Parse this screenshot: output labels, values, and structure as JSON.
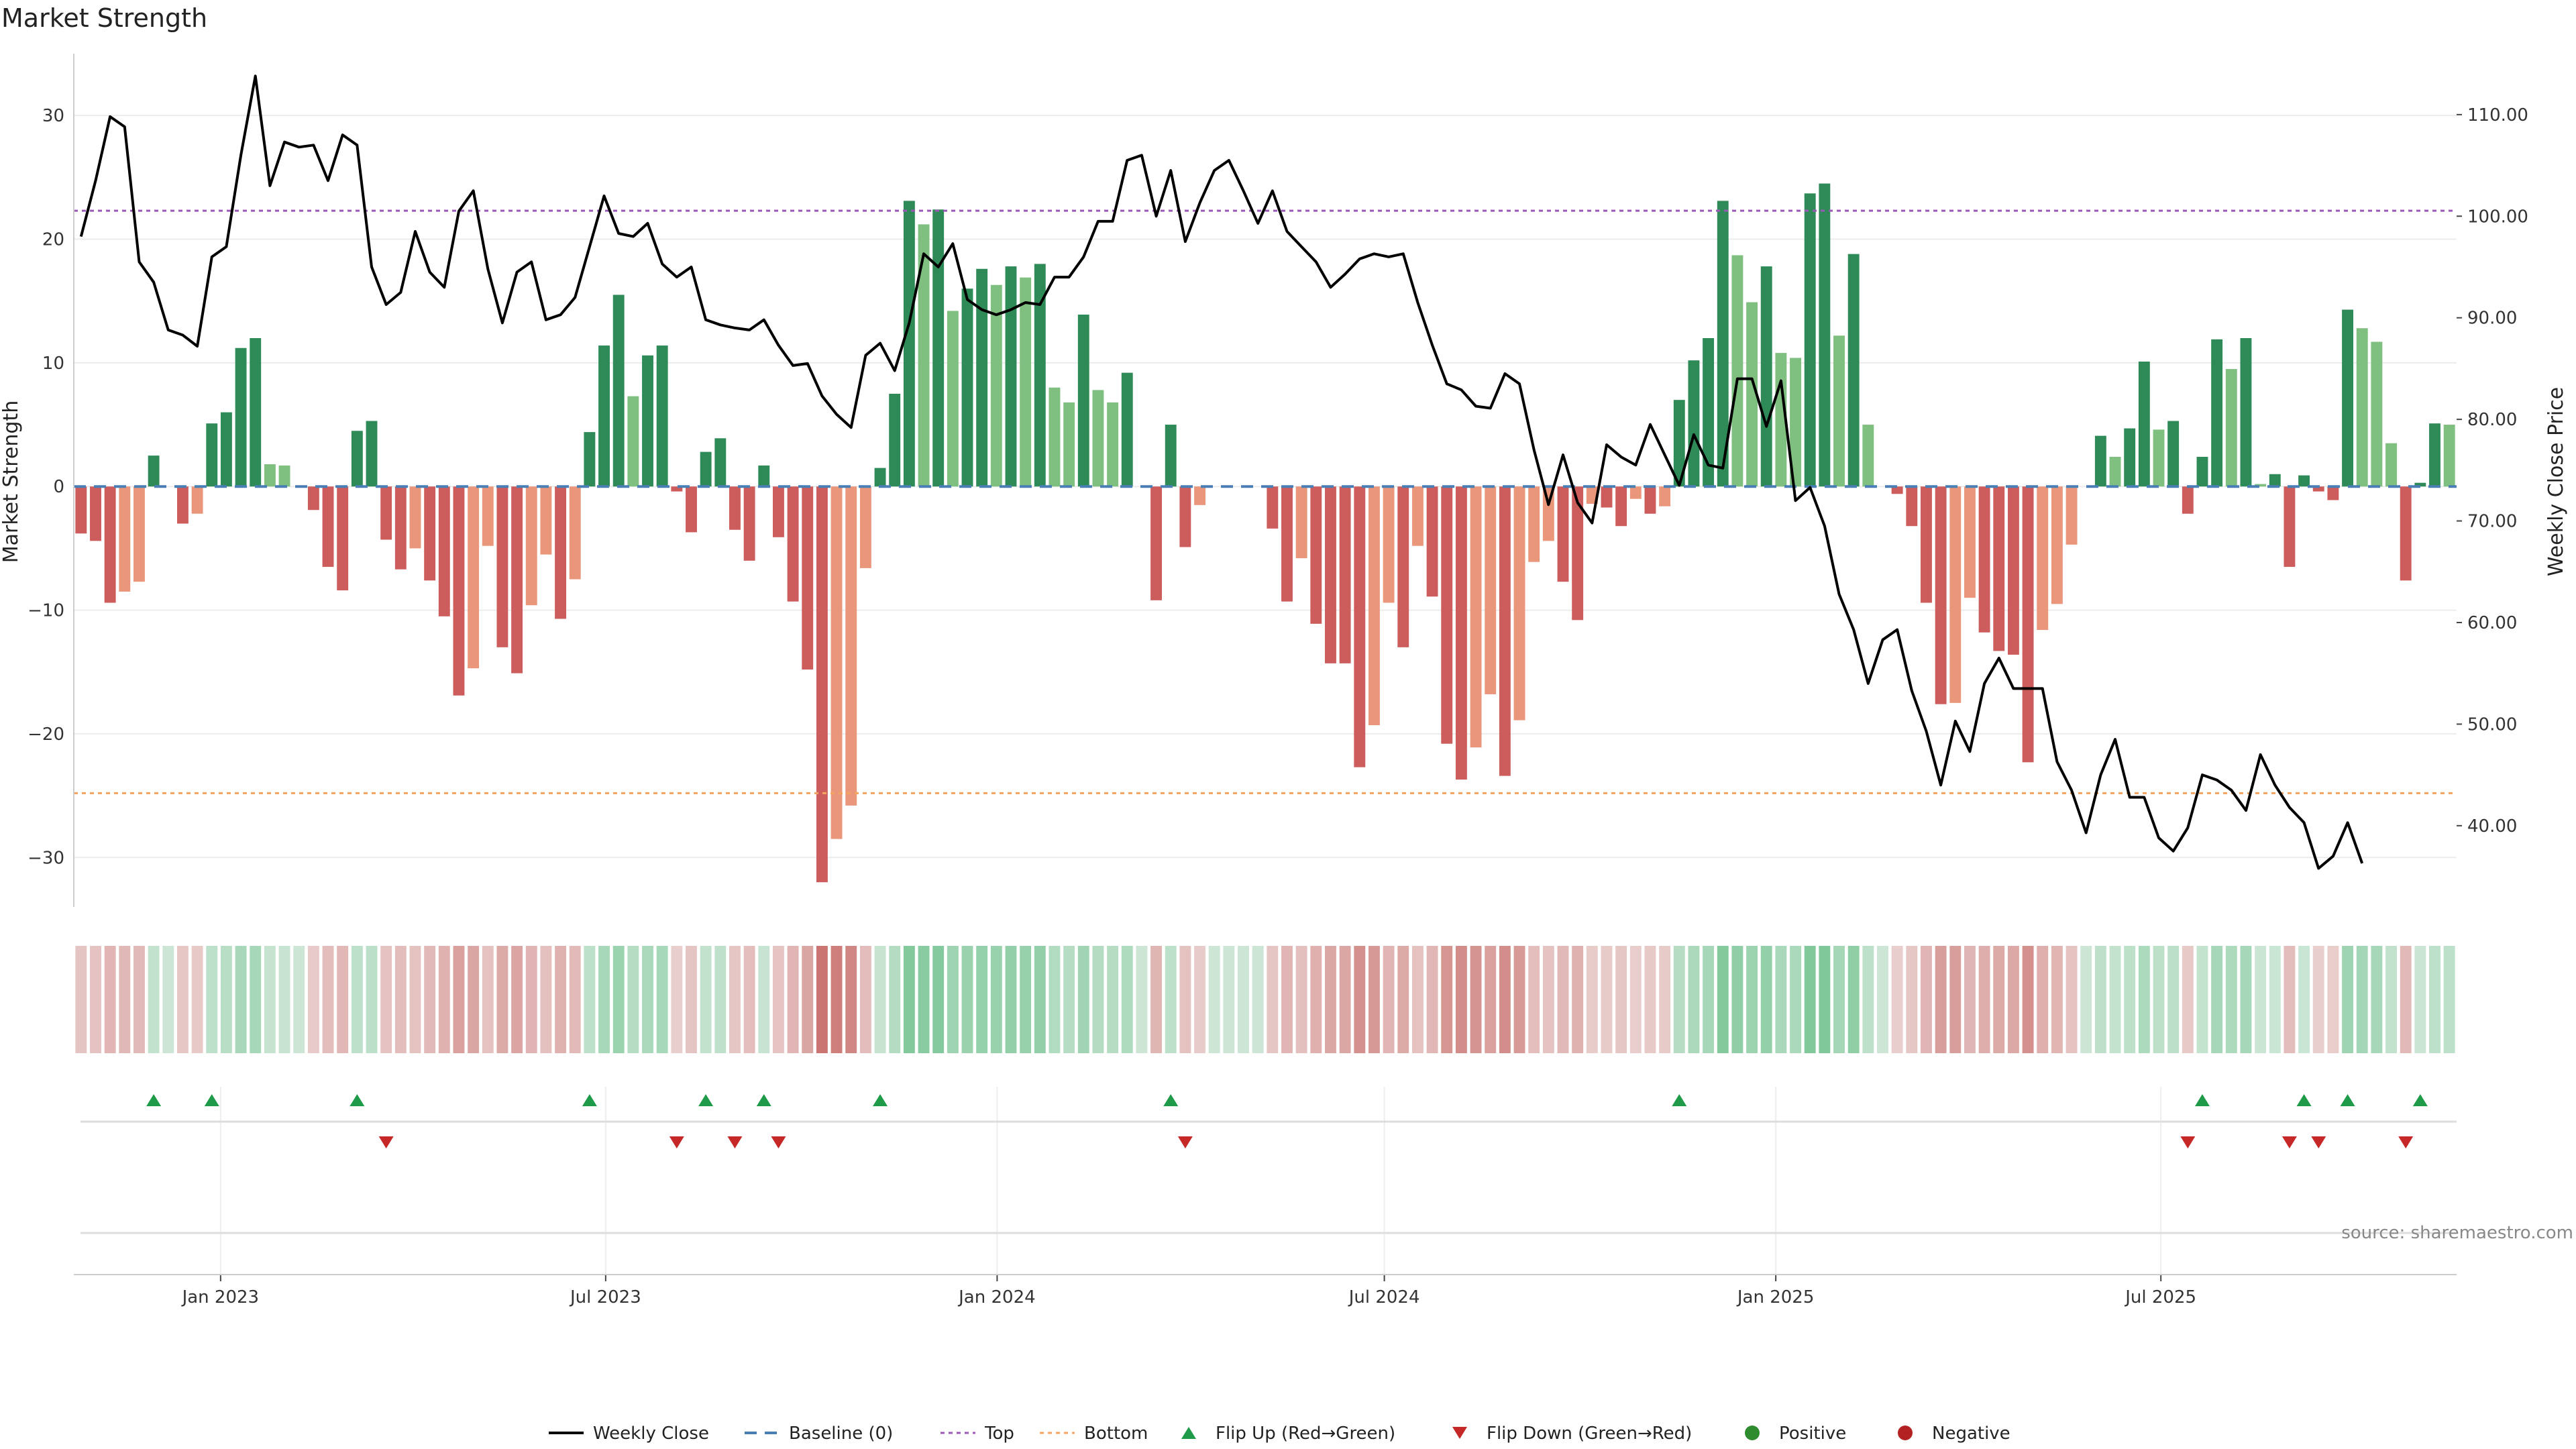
{
  "chart_data": {
    "type": "bar",
    "title": "Market Strength",
    "ylabel_left": "Market Strength",
    "ylabel_right": "Weekly Close Price",
    "source": "source: sharemaestro.com",
    "ylim_left": [
      -34,
      35
    ],
    "ylim_right": [
      32,
      116
    ],
    "yticks_left": [
      "30",
      "20",
      "10",
      "0",
      "−10",
      "−20",
      "−30"
    ],
    "yticks_left_values": [
      30,
      20,
      10,
      0,
      -10,
      -20,
      -30
    ],
    "yticks_right": [
      "110.00",
      "100.00",
      "90.00",
      "80.00",
      "70.00",
      "60.00",
      "50.00",
      "40.00"
    ],
    "yticks_right_values": [
      110,
      100,
      90,
      80,
      70,
      60,
      50,
      40
    ],
    "x_start_date": "2022-10-24",
    "x_end_date": "2025-11-17",
    "xticks": [
      {
        "label": "Jan 2023",
        "date": "2023-01-01"
      },
      {
        "label": "Jul 2023",
        "date": "2023-07-01"
      },
      {
        "label": "Jan 2024",
        "date": "2024-01-01"
      },
      {
        "label": "Jul 2024",
        "date": "2024-07-01"
      },
      {
        "label": "Jan 2025",
        "date": "2025-01-01"
      },
      {
        "label": "Jul 2025",
        "date": "2025-07-01"
      }
    ],
    "top_line": 22.3,
    "bottom_line": -24.8,
    "strength": [
      -3.8,
      -4.4,
      -9.4,
      -8.5,
      -7.7,
      2.5,
      0,
      -3,
      -2.2,
      5.1,
      6,
      11.2,
      12,
      1.8,
      1.7,
      0,
      -1.9,
      -6.5,
      -8.4,
      4.5,
      5.3,
      -4.3,
      -6.7,
      -5,
      -7.6,
      -10.5,
      -16.9,
      -14.7,
      -4.8,
      -13,
      -15.1,
      -9.6,
      -5.5,
      -10.7,
      -7.5,
      4.4,
      11.4,
      15.5,
      7.3,
      10.6,
      11.4,
      -0.4,
      -3.7,
      2.8,
      3.9,
      -3.5,
      -6,
      1.7,
      -4.1,
      -9.3,
      -14.8,
      -32,
      -28.5,
      -25.8,
      -6.6,
      1.5,
      7.5,
      23.1,
      21.2,
      22.4,
      14.2,
      16,
      17.6,
      16.3,
      17.8,
      16.9,
      18,
      8,
      6.8,
      13.9,
      7.8,
      6.8,
      9.2,
      0,
      -9.2,
      5,
      -4.9,
      -1.5,
      0,
      0,
      0,
      0,
      -3.4,
      -9.3,
      -5.8,
      -11.1,
      -14.3,
      -14.3,
      -22.7,
      -19.3,
      -9.4,
      -13,
      -4.8,
      -8.9,
      -20.8,
      -23.7,
      -21.1,
      -16.8,
      -23.4,
      -18.9,
      -6.1,
      -4.4,
      -7.7,
      -10.8,
      -1.4,
      -1.7,
      -3.2,
      -1,
      -2.2,
      -1.6,
      7,
      10.2,
      12,
      23.1,
      18.7,
      14.9,
      17.8,
      10.8,
      10.4,
      23.7,
      24.5,
      12.2,
      18.8,
      5,
      0,
      -0.6,
      -3.2,
      -9.4,
      -17.6,
      -17.5,
      -9,
      -11.8,
      -13.3,
      -13.6,
      -22.3,
      -11.6,
      -9.5,
      -4.7,
      0,
      4.1,
      2.4,
      4.7,
      10.1,
      4.6,
      5.3,
      -2.2,
      2.4,
      11.9,
      9.5,
      12,
      0.2,
      1,
      -6.5,
      0.9,
      -0.4,
      -1.1,
      14.3,
      12.8,
      11.7,
      3.5,
      -7.6,
      0.3,
      5.1,
      5
    ],
    "close": [
      98,
      103.5,
      109.8,
      108.8,
      95.5,
      93.5,
      88.8,
      88.3,
      87.2,
      96,
      97,
      106,
      113.8,
      103,
      107.3,
      106.8,
      107,
      103.5,
      108,
      107,
      95,
      91.3,
      92.5,
      98.5,
      94.5,
      93,
      100.5,
      102.5,
      94.8,
      89.5,
      94.5,
      95.5,
      89.8,
      90.3,
      92,
      97,
      102,
      98.3,
      98,
      99.3,
      95.3,
      94,
      95,
      89.8,
      89.3,
      89,
      88.8,
      89.8,
      87.3,
      85.3,
      85.5,
      82.3,
      80.5,
      79.2,
      86.3,
      87.5,
      84.8,
      89.5,
      96.3,
      95,
      97.3,
      91.8,
      90.8,
      90.3,
      90.8,
      91.5,
      91.3,
      94,
      94,
      96,
      99.5,
      99.5,
      105.5,
      106,
      100,
      104.5,
      97.5,
      101.3,
      104.5,
      105.5,
      102.5,
      99.3,
      102.5,
      98.5,
      97,
      95.5,
      93,
      94.3,
      95.8,
      96.3,
      96,
      96.3,
      91.5,
      87.3,
      83.5,
      82.9,
      81.3,
      81.1,
      84.5,
      83.5,
      77,
      71.6,
      76.5,
      71.8,
      69.8,
      77.5,
      76.3,
      75.5,
      79.5,
      76.5,
      73.5,
      78.5,
      75.5,
      75.2,
      84,
      84,
      79.3,
      83.8,
      72,
      73.3,
      69.5,
      62.8,
      59.3,
      54,
      58.3,
      59.3,
      53.3,
      49.3,
      44,
      50.3,
      47.3,
      54,
      56.5,
      53.5,
      53.5,
      53.5,
      46.3,
      43.5,
      39.3,
      45,
      48.5,
      42.8,
      42.8,
      38.8,
      37.5,
      39.8,
      45,
      44.5,
      43.5,
      41.5,
      47,
      44,
      41.8,
      40.3,
      35.8,
      37,
      40.3,
      36.3
    ]
  },
  "legend": [
    {
      "key": "close",
      "label": "Weekly Close"
    },
    {
      "key": "baseline",
      "label": "Baseline (0)"
    },
    {
      "key": "top",
      "label": "Top"
    },
    {
      "key": "bottom",
      "label": "Bottom"
    },
    {
      "key": "flip_up",
      "label": "Flip Up (Red→Green)"
    },
    {
      "key": "flip_down",
      "label": "Flip Down (Green→Red)"
    },
    {
      "key": "positive",
      "label": "Positive"
    },
    {
      "key": "negative",
      "label": "Negative"
    }
  ],
  "colors": {
    "pos_strong": "#2e8b57",
    "pos_light": "#7fbf7f",
    "neg_strong": "#cd5c5c",
    "neg_light": "#e9967a",
    "close": "#000000",
    "baseline": "#4a7fb5",
    "top": "#9b59b6",
    "bottom": "#f4a460",
    "flip_up": "#1f9a48",
    "flip_down": "#c62828",
    "positive_dot": "#2e8b2e",
    "negative_dot": "#b22222"
  }
}
